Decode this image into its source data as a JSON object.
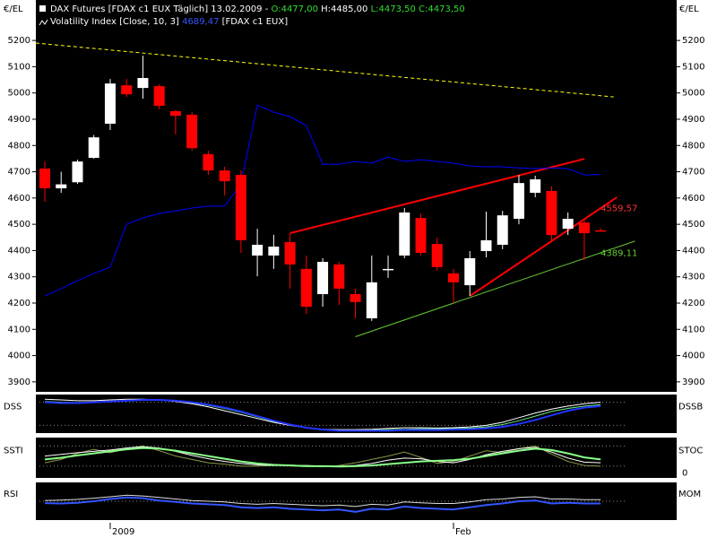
{
  "header": {
    "title": "DAX Futures [FDAX c1 EUX  Täglich] 13.02.2009 -",
    "ohlc": [
      "O:4477,00",
      "H:4485,00",
      "L:4473,50",
      "C:4473,50"
    ],
    "indicator": "Volatility Index [Close, 10, 3]",
    "indicator_value": "4689,47",
    "indicator_source": "[FDAX c1 EUX]"
  },
  "chart_data": [
    {
      "type": "candlestick",
      "axis_label": "€/EL",
      "up_color": "#ffffff",
      "down_color": "#ff0000",
      "categories": [
        null,
        null,
        null,
        null,
        "2009",
        null,
        null,
        null,
        null,
        null,
        null,
        null,
        null,
        null,
        null,
        null,
        null,
        null,
        null,
        null,
        null,
        null,
        null,
        null,
        null,
        "Feb",
        null,
        null,
        null,
        null,
        null,
        null,
        null,
        null,
        null
      ],
      "open": [
        4712,
        4637,
        4660,
        4753,
        4883,
        5029,
        5019,
        5026,
        4931,
        4917,
        4767,
        4705,
        4688,
        4381,
        4381,
        4432,
        4330,
        4234,
        4347,
        4234,
        4142,
        4330,
        4381,
        4524,
        4425,
        4313,
        4268,
        4398,
        4422,
        4521,
        4620,
        4627,
        4483,
        4507,
        4477
      ],
      "high": [
        4739,
        4700,
        4746,
        4840,
        5053,
        5053,
        5142,
        5033,
        4935,
        4927,
        4780,
        4719,
        4705,
        4483,
        4460,
        4466,
        4381,
        4371,
        4357,
        4255,
        4381,
        4381,
        4562,
        4541,
        4449,
        4330,
        4398,
        4548,
        4551,
        4688,
        4685,
        4644,
        4545,
        4517,
        4485
      ],
      "low": [
        4586,
        4620,
        4654,
        4750,
        4859,
        4985,
        4978,
        4937,
        4842,
        4780,
        4688,
        4610,
        4391,
        4302,
        4330,
        4255,
        4159,
        4186,
        4193,
        4142,
        4132,
        4296,
        4371,
        4381,
        4323,
        4200,
        4227,
        4374,
        4405,
        4500,
        4603,
        4439,
        4459,
        4364,
        4473.5
      ],
      "close": [
        4637,
        4652,
        4739,
        4831,
        5036,
        4995,
        5057,
        4951,
        4913,
        4790,
        4705,
        4664,
        4439,
        4422,
        4415,
        4347,
        4186,
        4357,
        4255,
        4204,
        4279,
        4330,
        4545,
        4391,
        4337,
        4279,
        4371,
        4439,
        4534,
        4657,
        4671,
        4459,
        4521,
        4466,
        4473.5
      ],
      "series": [
        {
          "name": "Volatility Index [Close, 10, 3]",
          "color": "#0000ff",
          "values": [
            4227,
            4255,
            4285,
            4313,
            4337,
            4500,
            4524,
            4541,
            4551,
            4562,
            4569,
            4569,
            4654,
            4954,
            4927,
            4910,
            4876,
            4729,
            4729,
            4739,
            4733,
            4756,
            4739,
            4746,
            4739,
            4733,
            4722,
            4719,
            4719,
            4715,
            4712,
            4715,
            4712,
            4688,
            4689.47
          ]
        }
      ],
      "trendlines": [
        {
          "color": "#ffff00",
          "dashed": true,
          "points": [
            [
              -0.55,
              5190
            ],
            [
              34.8,
              4985
            ]
          ]
        },
        {
          "color": "#ff0000",
          "dashed": false,
          "points": [
            [
              15,
              4466
            ],
            [
              33,
              4749
            ]
          ]
        },
        {
          "color": "#ff0000",
          "dashed": false,
          "points": [
            [
              26,
              4227
            ],
            [
              35,
              4603
            ]
          ]
        },
        {
          "color": "#66cc33",
          "dashed": false,
          "points": [
            [
              19,
              4072
            ],
            [
              36.1,
              4436
            ]
          ]
        }
      ],
      "annotations": [
        {
          "value": 4559.57,
          "label": "4559,57",
          "color": "#ff3333"
        },
        {
          "value": 4389.11,
          "label": "4389,11",
          "color": "#66cc33"
        }
      ],
      "ylim": [
        3862,
        5354
      ],
      "yticks": [
        3900,
        4000,
        4100,
        4200,
        4300,
        4400,
        4500,
        4600,
        4700,
        4800,
        4900,
        5000,
        5100,
        5200
      ]
    },
    {
      "type": "line",
      "label_left": "DSS",
      "label_right": "DSSB",
      "ylim": [
        0,
        100
      ],
      "levels": [
        80,
        20
      ],
      "series": [
        {
          "name": "DSS",
          "color": "#2233ff",
          "values": [
            80,
            78,
            78,
            80,
            82,
            84,
            86,
            86,
            84,
            80,
            74,
            66,
            56,
            44,
            32,
            22,
            14,
            9,
            6,
            6,
            6,
            6,
            8,
            8,
            8,
            9,
            10,
            12,
            16,
            24,
            34,
            46,
            58,
            66,
            70
          ]
        },
        {
          "name": "DSSB",
          "color": "#ffffff",
          "values": [
            88,
            86,
            84,
            84,
            86,
            88,
            88,
            86,
            82,
            76,
            68,
            58,
            48,
            38,
            28,
            20,
            14,
            10,
            9,
            9,
            10,
            12,
            14,
            14,
            13,
            14,
            16,
            20,
            28,
            40,
            52,
            62,
            70,
            76,
            80
          ]
        },
        {
          "name": "DSS signal",
          "color": "#66ee88",
          "values": [
            82,
            80,
            79,
            80,
            82,
            84,
            86,
            86,
            83,
            78,
            72,
            64,
            54,
            42,
            30,
            21,
            14,
            10,
            8,
            8,
            8,
            9,
            10,
            11,
            11,
            12,
            13,
            16,
            22,
            32,
            44,
            56,
            64,
            70,
            74
          ]
        }
      ]
    },
    {
      "type": "line",
      "label_left": "SSTI",
      "label_right": "STOC",
      "ylim": [
        -15,
        105
      ],
      "yticks": [
        0
      ],
      "levels": [
        80,
        20
      ],
      "series": [
        {
          "name": "SSTI",
          "color": "#88ff88",
          "values": [
            40,
            45,
            52,
            58,
            64,
            70,
            74,
            72,
            66,
            58,
            50,
            42,
            34,
            28,
            24,
            22,
            20,
            20,
            19,
            20,
            22,
            26,
            30,
            34,
            36,
            38,
            42,
            50,
            58,
            66,
            72,
            68,
            58,
            46,
            40
          ]
        },
        {
          "name": "STOC",
          "color": "#ffffff",
          "values": [
            50,
            55,
            60,
            64,
            68,
            74,
            78,
            74,
            64,
            52,
            42,
            34,
            28,
            24,
            22,
            22,
            22,
            20,
            20,
            22,
            28,
            38,
            44,
            42,
            34,
            30,
            40,
            54,
            64,
            72,
            76,
            62,
            44,
            32,
            30
          ]
        },
        {
          "name": "STOC raw",
          "color": "#889944",
          "values": [
            30,
            40,
            58,
            70,
            60,
            72,
            80,
            66,
            50,
            40,
            30,
            26,
            20,
            20,
            22,
            24,
            20,
            18,
            22,
            30,
            40,
            50,
            62,
            46,
            28,
            34,
            50,
            66,
            60,
            72,
            80,
            56,
            34,
            22,
            20
          ]
        }
      ]
    },
    {
      "type": "line",
      "label_left": "RSI",
      "label_right": "MOM",
      "ylim": [
        0,
        100
      ],
      "levels": [
        50
      ],
      "series": [
        {
          "name": "RSI",
          "color": "#3355ff",
          "values": [
            45,
            44,
            46,
            50,
            56,
            60,
            58,
            52,
            48,
            44,
            42,
            40,
            34,
            32,
            34,
            30,
            28,
            26,
            28,
            22,
            30,
            28,
            36,
            32,
            30,
            28,
            34,
            40,
            44,
            50,
            52,
            44,
            46,
            44,
            44
          ]
        },
        {
          "name": "MOM",
          "color": "#dddddd",
          "values": [
            52,
            53,
            55,
            58,
            62,
            66,
            64,
            60,
            56,
            52,
            50,
            48,
            44,
            42,
            44,
            42,
            40,
            38,
            40,
            36,
            42,
            40,
            48,
            46,
            44,
            44,
            48,
            54,
            56,
            60,
            62,
            56,
            56,
            54,
            54
          ]
        }
      ]
    }
  ]
}
